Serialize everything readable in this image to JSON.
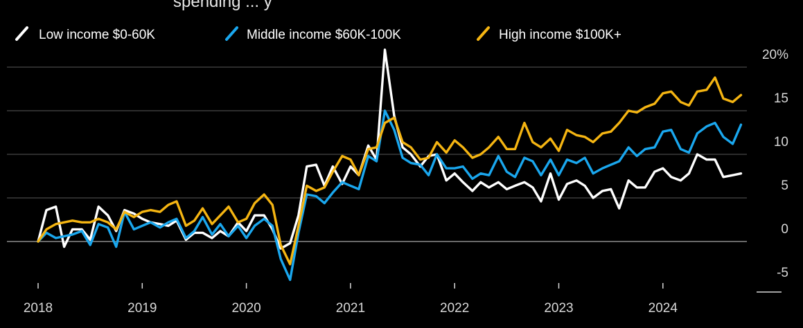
{
  "chart_data": {
    "type": "line",
    "title_fragment": "spending    ...    y",
    "ylim": [
      -5,
      20
    ],
    "y_ticks": [
      "20%",
      "15",
      "10",
      "5",
      "0",
      "-5"
    ],
    "y_tick_values": [
      20,
      15,
      10,
      5,
      0,
      -5
    ],
    "x_ticks": [
      "2018",
      "2019",
      "2020",
      "2021",
      "2022",
      "2023",
      "2024"
    ],
    "x_tick_values": [
      2018,
      2019,
      2020,
      2021,
      2022,
      2023,
      2024
    ],
    "grid": true,
    "legend_position": "top-left",
    "series": [
      {
        "name": "Low income $0-60K",
        "color": "#ffffff",
        "points": [
          [
            2018.0,
            0.0
          ],
          [
            2018.08,
            3.6
          ],
          [
            2018.17,
            4.0
          ],
          [
            2018.25,
            -0.6
          ],
          [
            2018.33,
            1.4
          ],
          [
            2018.42,
            1.4
          ],
          [
            2018.5,
            0.2
          ],
          [
            2018.58,
            4.0
          ],
          [
            2018.67,
            3.0
          ],
          [
            2018.75,
            1.2
          ],
          [
            2018.83,
            3.6
          ],
          [
            2018.92,
            3.2
          ],
          [
            2019.0,
            2.6
          ],
          [
            2019.08,
            2.2
          ],
          [
            2019.17,
            2.0
          ],
          [
            2019.25,
            1.8
          ],
          [
            2019.33,
            2.4
          ],
          [
            2019.42,
            0.2
          ],
          [
            2019.5,
            1.0
          ],
          [
            2019.58,
            1.0
          ],
          [
            2019.67,
            0.4
          ],
          [
            2019.75,
            1.2
          ],
          [
            2019.83,
            0.6
          ],
          [
            2019.92,
            2.2
          ],
          [
            2020.0,
            1.2
          ],
          [
            2020.08,
            3.0
          ],
          [
            2020.17,
            3.0
          ],
          [
            2020.25,
            1.4
          ],
          [
            2020.33,
            -0.8
          ],
          [
            2020.42,
            -0.2
          ],
          [
            2020.5,
            3.0
          ],
          [
            2020.58,
            8.6
          ],
          [
            2020.67,
            8.8
          ],
          [
            2020.75,
            6.4
          ],
          [
            2020.83,
            8.6
          ],
          [
            2020.92,
            6.6
          ],
          [
            2021.0,
            8.6
          ],
          [
            2021.08,
            7.6
          ],
          [
            2021.17,
            11.0
          ],
          [
            2021.25,
            9.4
          ],
          [
            2021.33,
            22.0
          ],
          [
            2021.42,
            14.4
          ],
          [
            2021.5,
            10.8
          ],
          [
            2021.58,
            10.0
          ],
          [
            2021.67,
            8.6
          ],
          [
            2021.75,
            9.8
          ],
          [
            2021.83,
            10.0
          ],
          [
            2021.92,
            7.0
          ],
          [
            2022.0,
            7.8
          ],
          [
            2022.08,
            6.8
          ],
          [
            2022.17,
            5.8
          ],
          [
            2022.25,
            6.8
          ],
          [
            2022.33,
            6.2
          ],
          [
            2022.42,
            6.8
          ],
          [
            2022.5,
            6.0
          ],
          [
            2022.58,
            6.4
          ],
          [
            2022.67,
            6.8
          ],
          [
            2022.75,
            6.2
          ],
          [
            2022.83,
            4.6
          ],
          [
            2022.92,
            7.8
          ],
          [
            2023.0,
            4.8
          ],
          [
            2023.08,
            6.6
          ],
          [
            2023.17,
            7.0
          ],
          [
            2023.25,
            6.4
          ],
          [
            2023.33,
            5.0
          ],
          [
            2023.42,
            5.8
          ],
          [
            2023.5,
            6.0
          ],
          [
            2023.58,
            3.8
          ],
          [
            2023.67,
            7.0
          ],
          [
            2023.75,
            6.2
          ],
          [
            2023.83,
            6.2
          ],
          [
            2023.92,
            8.0
          ],
          [
            2024.0,
            8.4
          ],
          [
            2024.08,
            7.4
          ],
          [
            2024.17,
            7.0
          ],
          [
            2024.25,
            7.8
          ],
          [
            2024.33,
            10.0
          ],
          [
            2024.42,
            9.4
          ],
          [
            2024.5,
            9.4
          ],
          [
            2024.58,
            7.4
          ],
          [
            2024.67,
            7.6
          ],
          [
            2024.75,
            7.8
          ]
        ]
      },
      {
        "name": "Middle income $60K-100K",
        "color": "#1aa7ee",
        "points": [
          [
            2018.0,
            0.0
          ],
          [
            2018.08,
            1.0
          ],
          [
            2018.17,
            0.4
          ],
          [
            2018.25,
            0.6
          ],
          [
            2018.33,
            0.8
          ],
          [
            2018.42,
            1.2
          ],
          [
            2018.5,
            -0.4
          ],
          [
            2018.58,
            2.0
          ],
          [
            2018.67,
            1.6
          ],
          [
            2018.75,
            -0.6
          ],
          [
            2018.83,
            3.4
          ],
          [
            2018.92,
            1.4
          ],
          [
            2019.0,
            1.8
          ],
          [
            2019.08,
            2.2
          ],
          [
            2019.17,
            1.6
          ],
          [
            2019.25,
            2.2
          ],
          [
            2019.33,
            2.6
          ],
          [
            2019.42,
            0.4
          ],
          [
            2019.5,
            1.2
          ],
          [
            2019.58,
            2.8
          ],
          [
            2019.67,
            0.8
          ],
          [
            2019.75,
            2.0
          ],
          [
            2019.83,
            0.6
          ],
          [
            2019.92,
            1.8
          ],
          [
            2020.0,
            0.4
          ],
          [
            2020.08,
            1.8
          ],
          [
            2020.17,
            2.6
          ],
          [
            2020.25,
            1.8
          ],
          [
            2020.33,
            -2.0
          ],
          [
            2020.42,
            -4.4
          ],
          [
            2020.5,
            1.0
          ],
          [
            2020.58,
            5.4
          ],
          [
            2020.67,
            5.2
          ],
          [
            2020.75,
            4.4
          ],
          [
            2020.83,
            5.6
          ],
          [
            2020.92,
            6.8
          ],
          [
            2021.0,
            6.4
          ],
          [
            2021.08,
            6.0
          ],
          [
            2021.17,
            9.8
          ],
          [
            2021.25,
            9.2
          ],
          [
            2021.33,
            15.0
          ],
          [
            2021.42,
            12.8
          ],
          [
            2021.5,
            9.6
          ],
          [
            2021.58,
            9.0
          ],
          [
            2021.67,
            8.8
          ],
          [
            2021.75,
            7.6
          ],
          [
            2021.83,
            10.0
          ],
          [
            2021.92,
            8.4
          ],
          [
            2022.0,
            8.4
          ],
          [
            2022.08,
            8.6
          ],
          [
            2022.17,
            7.2
          ],
          [
            2022.25,
            7.8
          ],
          [
            2022.33,
            7.6
          ],
          [
            2022.42,
            9.8
          ],
          [
            2022.5,
            8.0
          ],
          [
            2022.58,
            7.4
          ],
          [
            2022.67,
            9.6
          ],
          [
            2022.75,
            9.2
          ],
          [
            2022.83,
            7.6
          ],
          [
            2022.92,
            9.4
          ],
          [
            2023.0,
            7.6
          ],
          [
            2023.08,
            9.4
          ],
          [
            2023.17,
            9.0
          ],
          [
            2023.25,
            9.6
          ],
          [
            2023.33,
            7.8
          ],
          [
            2023.42,
            8.4
          ],
          [
            2023.5,
            8.8
          ],
          [
            2023.58,
            9.2
          ],
          [
            2023.67,
            10.8
          ],
          [
            2023.75,
            9.8
          ],
          [
            2023.83,
            10.6
          ],
          [
            2023.92,
            10.8
          ],
          [
            2024.0,
            12.6
          ],
          [
            2024.08,
            12.8
          ],
          [
            2024.17,
            10.6
          ],
          [
            2024.25,
            10.2
          ],
          [
            2024.33,
            12.4
          ],
          [
            2024.42,
            13.2
          ],
          [
            2024.5,
            13.6
          ],
          [
            2024.58,
            12.0
          ],
          [
            2024.67,
            11.2
          ],
          [
            2024.75,
            13.4
          ]
        ]
      },
      {
        "name": "High income $100K+",
        "color": "#f5b512",
        "points": [
          [
            2018.0,
            0.0
          ],
          [
            2018.08,
            1.4
          ],
          [
            2018.17,
            2.0
          ],
          [
            2018.25,
            2.2
          ],
          [
            2018.33,
            2.4
          ],
          [
            2018.42,
            2.2
          ],
          [
            2018.5,
            2.2
          ],
          [
            2018.58,
            2.6
          ],
          [
            2018.67,
            2.2
          ],
          [
            2018.75,
            1.4
          ],
          [
            2018.83,
            3.4
          ],
          [
            2018.92,
            2.8
          ],
          [
            2019.0,
            3.4
          ],
          [
            2019.08,
            3.6
          ],
          [
            2019.17,
            3.4
          ],
          [
            2019.25,
            4.2
          ],
          [
            2019.33,
            4.6
          ],
          [
            2019.42,
            1.8
          ],
          [
            2019.5,
            2.4
          ],
          [
            2019.58,
            3.8
          ],
          [
            2019.67,
            2.0
          ],
          [
            2019.75,
            3.0
          ],
          [
            2019.83,
            4.0
          ],
          [
            2019.92,
            2.2
          ],
          [
            2020.0,
            2.6
          ],
          [
            2020.08,
            4.4
          ],
          [
            2020.17,
            5.4
          ],
          [
            2020.25,
            4.2
          ],
          [
            2020.33,
            -0.4
          ],
          [
            2020.42,
            -2.6
          ],
          [
            2020.5,
            1.8
          ],
          [
            2020.58,
            6.4
          ],
          [
            2020.67,
            5.8
          ],
          [
            2020.75,
            6.2
          ],
          [
            2020.83,
            8.0
          ],
          [
            2020.92,
            9.8
          ],
          [
            2021.0,
            9.4
          ],
          [
            2021.08,
            7.6
          ],
          [
            2021.17,
            10.6
          ],
          [
            2021.25,
            10.8
          ],
          [
            2021.33,
            13.6
          ],
          [
            2021.42,
            14.2
          ],
          [
            2021.5,
            11.4
          ],
          [
            2021.58,
            10.8
          ],
          [
            2021.67,
            9.4
          ],
          [
            2021.75,
            9.6
          ],
          [
            2021.83,
            11.4
          ],
          [
            2021.92,
            10.2
          ],
          [
            2022.0,
            11.6
          ],
          [
            2022.08,
            10.8
          ],
          [
            2022.17,
            9.6
          ],
          [
            2022.25,
            10.0
          ],
          [
            2022.33,
            10.8
          ],
          [
            2022.42,
            12.0
          ],
          [
            2022.5,
            10.6
          ],
          [
            2022.58,
            10.6
          ],
          [
            2022.67,
            13.6
          ],
          [
            2022.75,
            11.4
          ],
          [
            2022.83,
            10.8
          ],
          [
            2022.92,
            11.8
          ],
          [
            2023.0,
            10.4
          ],
          [
            2023.08,
            12.8
          ],
          [
            2023.17,
            12.2
          ],
          [
            2023.25,
            12.0
          ],
          [
            2023.33,
            11.4
          ],
          [
            2023.42,
            12.4
          ],
          [
            2023.5,
            12.6
          ],
          [
            2023.58,
            13.6
          ],
          [
            2023.67,
            15.0
          ],
          [
            2023.75,
            14.8
          ],
          [
            2023.83,
            15.4
          ],
          [
            2023.92,
            15.8
          ],
          [
            2024.0,
            17.0
          ],
          [
            2024.08,
            17.2
          ],
          [
            2024.17,
            16.0
          ],
          [
            2024.25,
            15.6
          ],
          [
            2024.33,
            17.2
          ],
          [
            2024.42,
            17.4
          ],
          [
            2024.5,
            18.8
          ],
          [
            2024.58,
            16.4
          ],
          [
            2024.67,
            16.0
          ],
          [
            2024.75,
            16.8
          ]
        ]
      }
    ]
  }
}
